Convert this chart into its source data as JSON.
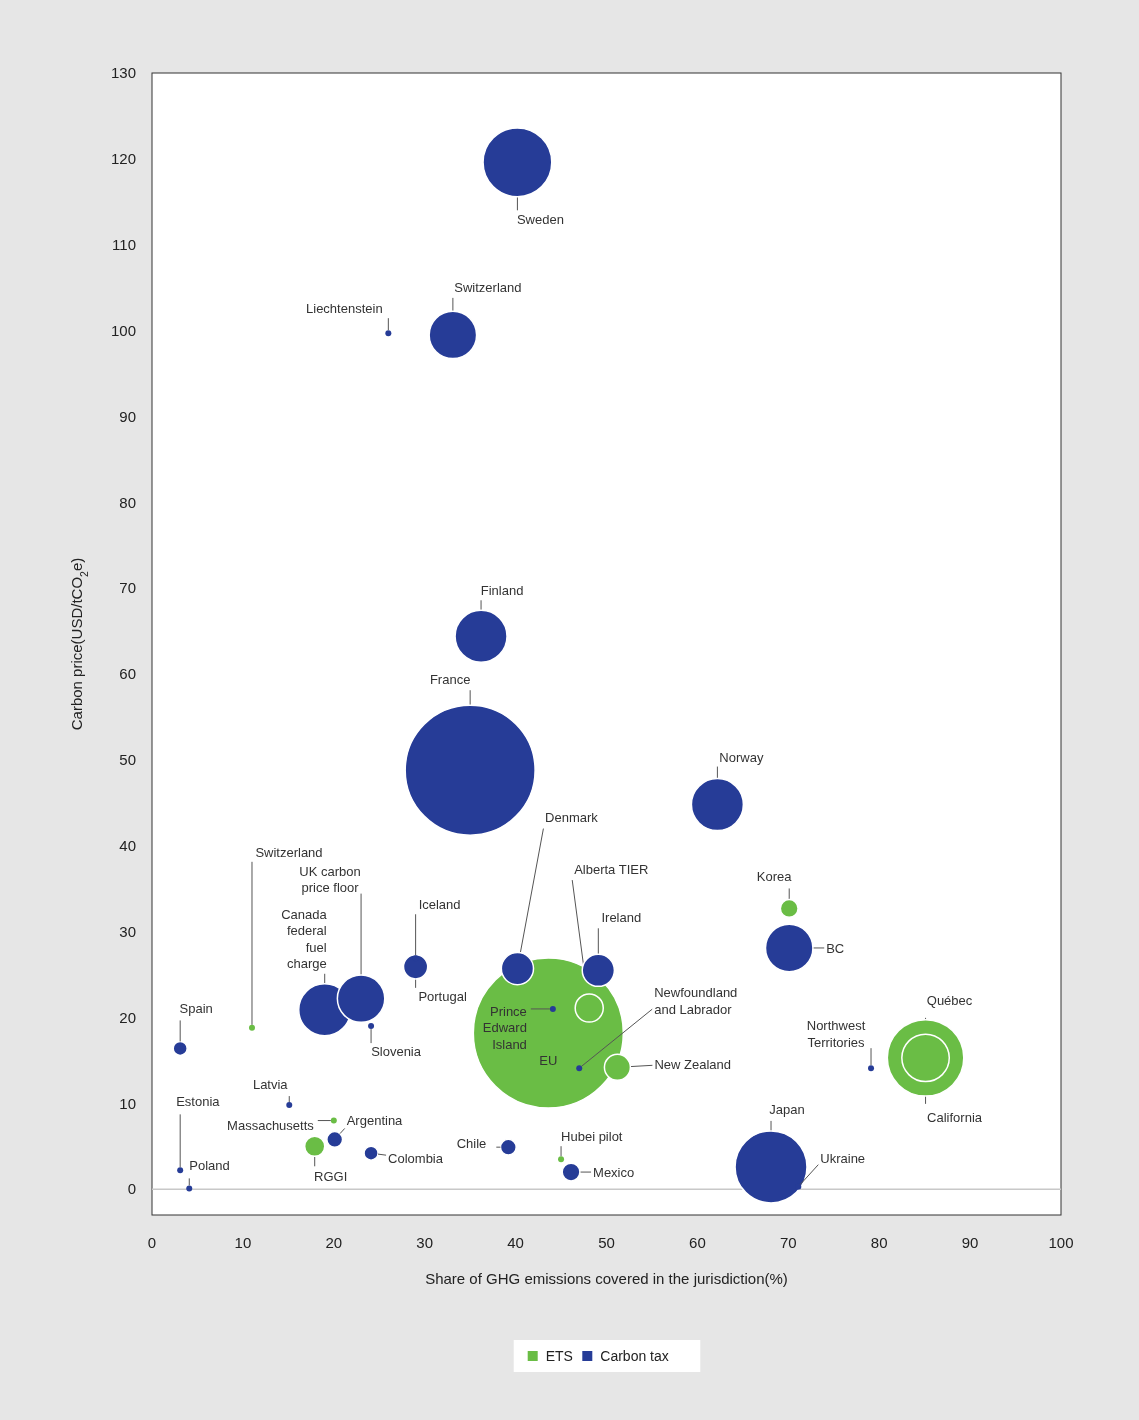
{
  "chart_data": {
    "type": "bubble",
    "xlabel": "Share of GHG emissions covered in the jurisdiction(%)",
    "ylabel": "Carbon price(USD/tCO$_{2}$e)",
    "xlim": [
      0,
      100
    ],
    "xticks": [
      0,
      10,
      20,
      30,
      40,
      50,
      60,
      70,
      80,
      90,
      100
    ],
    "ylim": [
      -3,
      130
    ],
    "yticks": [
      0,
      10,
      20,
      30,
      40,
      50,
      60,
      70,
      80,
      90,
      100,
      110,
      120,
      130
    ],
    "grid": false,
    "legend": "bottom",
    "ref_lines": [
      {
        "axis": "y",
        "value": 0,
        "color": "#c8c8c8"
      }
    ],
    "series": [
      {
        "name": "ETS",
        "color": "#6abd45",
        "x": [
          43.6,
          48.1,
          51.2,
          70.1,
          85.1,
          85.1,
          11,
          20,
          17.9,
          45
        ],
        "values": [
          18.2,
          21.1,
          14.2,
          32.7,
          15.3,
          15.3,
          18.8,
          8,
          5,
          3.5
        ],
        "sizes": [
          1,
          0.035,
          0.03,
          0.014,
          0.26,
          0.1,
          0.0016,
          0.0016,
          0.018,
          0.0016
        ]
      },
      {
        "name": "Carbon tax",
        "color": "#263c97",
        "x": [
          40.2,
          33.1,
          26,
          36.2,
          35,
          62.2,
          40.2,
          49.1,
          70.1,
          29,
          29,
          19,
          23,
          24.1,
          3.1,
          44.1,
          47,
          79.1,
          15.1,
          20.1,
          24.1,
          39.2,
          46.1,
          3.1,
          4.1,
          68.1,
          71.1
        ],
        "values": [
          119.6,
          99.5,
          99.7,
          64.4,
          48.8,
          44.8,
          25.7,
          25.5,
          28.1,
          26.9,
          25.9,
          20.9,
          22.2,
          19,
          16.4,
          21,
          14.1,
          14.1,
          9.8,
          5.8,
          4.2,
          4.9,
          2,
          2.2,
          0.1,
          2.6,
          0.3
        ],
        "sizes": [
          0.21,
          0.1,
          0.0016,
          0.12,
          0.75,
          0.12,
          0.046,
          0.046,
          0.1,
          0.0016,
          0.026,
          0.12,
          0.1,
          0.0016,
          0.0087,
          0.0016,
          0.0016,
          0.0016,
          0.0016,
          0.011,
          0.0087,
          0.011,
          0.014,
          0.0016,
          0.0016,
          0.23,
          0.0016
        ]
      }
    ],
    "annotations": [
      {
        "text": "Sweden",
        "x": 40.2,
        "y": 119.6
      },
      {
        "text": "Switzerland",
        "x": 33.1,
        "y": 99.5
      },
      {
        "text": "Liechtenstein",
        "x": 26,
        "y": 99.7
      },
      {
        "text": "Finland",
        "x": 36.2,
        "y": 64.4
      },
      {
        "text": "France",
        "x": 35,
        "y": 48.8
      },
      {
        "text": "Norway",
        "x": 62.2,
        "y": 44.8
      },
      {
        "text": "Denmark",
        "x": 40.2,
        "y": 25.7
      },
      {
        "text": "Ireland",
        "x": 49.1,
        "y": 25.5
      },
      {
        "text": "BC",
        "x": 70.1,
        "y": 28.1
      },
      {
        "text": "Iceland",
        "x": 29,
        "y": 26.9
      },
      {
        "text": "Portugal",
        "x": 29,
        "y": 25.9
      },
      {
        "text": "Canada federal fuel charge",
        "x": 19,
        "y": 20.9
      },
      {
        "text": "UK carbon price floor",
        "x": 23,
        "y": 22.2
      },
      {
        "text": "Slovenia",
        "x": 24.1,
        "y": 19
      },
      {
        "text": "Spain",
        "x": 3.1,
        "y": 16.4
      },
      {
        "text": "Prince Edward Island",
        "x": 44.1,
        "y": 21
      },
      {
        "text": "Newfoundland and Labrador",
        "x": 47,
        "y": 14.1
      },
      {
        "text": "Northwest Territories",
        "x": 79.1,
        "y": 14.1
      },
      {
        "text": "Latvia",
        "x": 15.1,
        "y": 9.8
      },
      {
        "text": "Argentina",
        "x": 20.1,
        "y": 5.8
      },
      {
        "text": "Colombia",
        "x": 24.1,
        "y": 4.2
      },
      {
        "text": "Chile",
        "x": 39.2,
        "y": 4.9
      },
      {
        "text": "Mexico",
        "x": 46.1,
        "y": 2
      },
      {
        "text": "Estonia",
        "x": 3.1,
        "y": 2.2
      },
      {
        "text": "Poland",
        "x": 4.1,
        "y": 0.1
      },
      {
        "text": "Japan",
        "x": 68.1,
        "y": 2.6
      },
      {
        "text": "Ukraine",
        "x": 71.1,
        "y": 0.3
      },
      {
        "text": "EU",
        "x": 43.6,
        "y": 18.2
      },
      {
        "text": "Alberta TIER",
        "x": 48.1,
        "y": 21.1
      },
      {
        "text": "New Zealand",
        "x": 51.2,
        "y": 14.2
      },
      {
        "text": "Korea",
        "x": 70.1,
        "y": 32.7
      },
      {
        "text": "Québec",
        "x": 85.1,
        "y": 15.3
      },
      {
        "text": "California",
        "x": 85.1,
        "y": 15.3
      },
      {
        "text": "Switzerland",
        "x": 11,
        "y": 18.8
      },
      {
        "text": "Massachusetts",
        "x": 20,
        "y": 8
      },
      {
        "text": "RGGI",
        "x": 17.9,
        "y": 5
      },
      {
        "text": "Hubei pilot",
        "x": 45,
        "y": 3.5
      }
    ]
  }
}
